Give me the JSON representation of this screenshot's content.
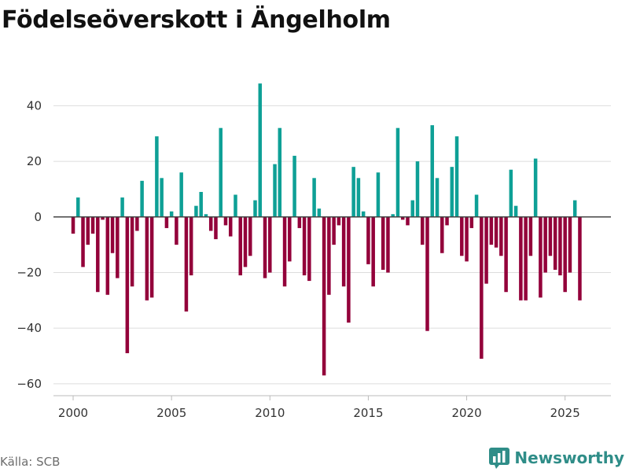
{
  "title": "Födelseöverskott i Ängelholm",
  "source": "Källa: SCB",
  "brand": {
    "name": "Newsworthy",
    "icon": "bar-chart-logo-icon"
  },
  "colors": {
    "positive": "#0ea096",
    "negative": "#93003a",
    "grid": "#dddddd",
    "zero": "#444444",
    "brand": "#2f8d88"
  },
  "chart_data": {
    "type": "bar",
    "title": "Födelseöverskott i Ängelholm",
    "xlabel": "",
    "ylabel": "",
    "ylim": [
      -64,
      52
    ],
    "xlim": [
      1999.0,
      2027.33
    ],
    "yticks": [
      -60,
      -40,
      -20,
      0,
      20,
      40
    ],
    "xticks": [
      2000,
      2005,
      2010,
      2015,
      2020,
      2025
    ],
    "frequency": "monthly-ish (quarterly intervals)",
    "start": 2000,
    "step": 0.25,
    "values": [
      -6,
      7,
      -18,
      -10,
      -6,
      -27,
      -1,
      -28,
      -13,
      -22,
      7,
      -49,
      -25,
      -5,
      13,
      -30,
      -29,
      29,
      14,
      -4,
      2,
      -10,
      16,
      -34,
      -21,
      4,
      9,
      1,
      -5,
      -8,
      32,
      -3,
      -7,
      8,
      -21,
      -18,
      -14,
      6,
      48,
      -22,
      -20,
      19,
      32,
      -25,
      -16,
      22,
      -4,
      -21,
      -23,
      14,
      3,
      -57,
      -28,
      -10,
      -3,
      -25,
      -38,
      18,
      14,
      2,
      -17,
      -25,
      16,
      -19,
      -20,
      1,
      32,
      -1,
      -3,
      6,
      20,
      -10,
      -41,
      33,
      14,
      -13,
      -3,
      18,
      29,
      -14,
      -16,
      -4,
      8,
      -51,
      -24,
      -10,
      -11,
      -14,
      -27,
      17,
      4,
      -30,
      -30,
      -14,
      21,
      -29,
      -20,
      -14,
      -19,
      -21,
      -27,
      -20,
      6,
      -30
    ]
  }
}
